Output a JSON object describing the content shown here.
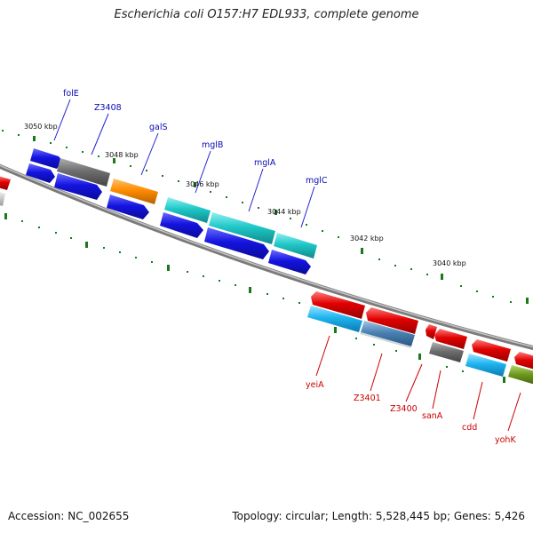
{
  "title": "Escherichia coli O157:H7 EDL933, complete genome",
  "footer": {
    "accession": "Accession: NC_002655",
    "stats": "Topology: circular; Length: 5,528,445 bp; Genes: 5,426"
  },
  "ruler": [
    "3050 kbp",
    "3048 kbp",
    "3046 kbp",
    "3044 kbp",
    "3042 kbp",
    "3040 kbp"
  ],
  "genes_forward": [
    "folE",
    "Z3408",
    "galS",
    "mglB",
    "mglA",
    "mglC"
  ],
  "genes_reverse": [
    "yeiA",
    "Z3401",
    "Z3400",
    "sanA",
    "cdd",
    "yohK"
  ],
  "colors": {
    "cds_blue": "#1414e0",
    "cds_cyan": "#20c8c8",
    "cds_orange": "#ff8c00",
    "cds_grey": "#6e6e6e",
    "cds_red": "#e00000",
    "cds_sky": "#1eb4f0",
    "cds_steel": "#4a82b4",
    "cds_olive": "#6e9a1e",
    "tick_green": "#1a7a1a",
    "backbone": "#8a8a8a"
  }
}
